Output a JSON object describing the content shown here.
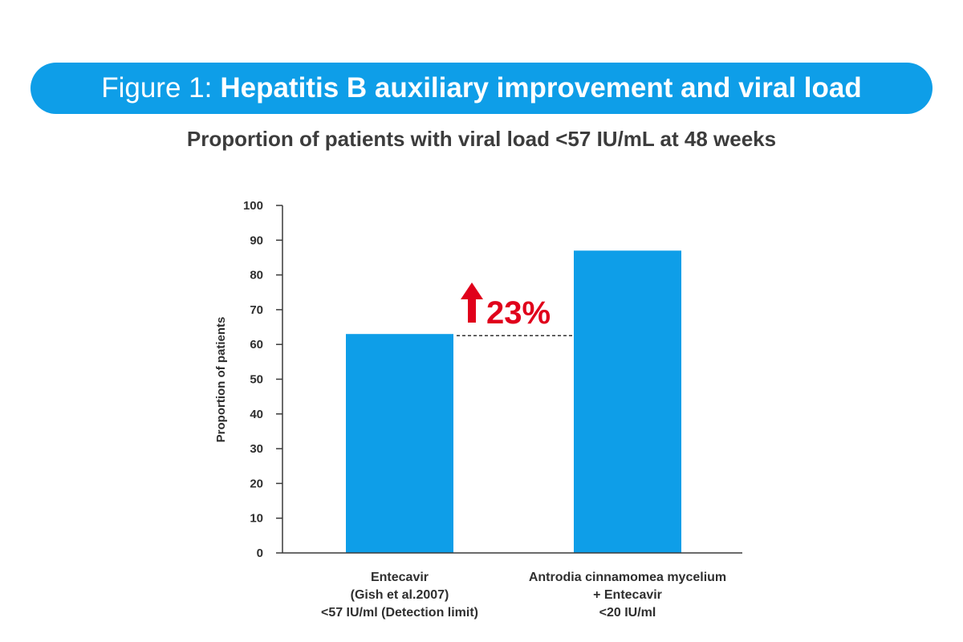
{
  "header": {
    "prefix": "Figure 1:",
    "title": "Hepatitis B auxiliary improvement and viral load"
  },
  "chart_data": {
    "type": "bar",
    "title": "Proportion of patients with viral load <57 IU/mL at 48 weeks",
    "ylabel": "Proportion of patients",
    "xlabel": "",
    "ylim": [
      0,
      100
    ],
    "yticks": [
      0,
      10,
      20,
      30,
      40,
      50,
      60,
      70,
      80,
      90,
      100
    ],
    "grid": false,
    "categories": [
      {
        "lines": [
          "Entecavir",
          "(Gish et al.2007)",
          "<57 IU/ml (Detection limit)"
        ]
      },
      {
        "lines": [
          "Antrodia cinnamomea mycelium",
          "+ Entecavir",
          "<20 IU/ml"
        ]
      }
    ],
    "values": [
      63,
      87
    ],
    "annotation": {
      "text": "23%",
      "direction": "up-arrow",
      "baseline_value": 63
    }
  },
  "colors": {
    "banner": "#0e9ee8",
    "bar": "#0e9ee8",
    "axis": "#3a3a3a",
    "annotation": "#e0001b"
  }
}
